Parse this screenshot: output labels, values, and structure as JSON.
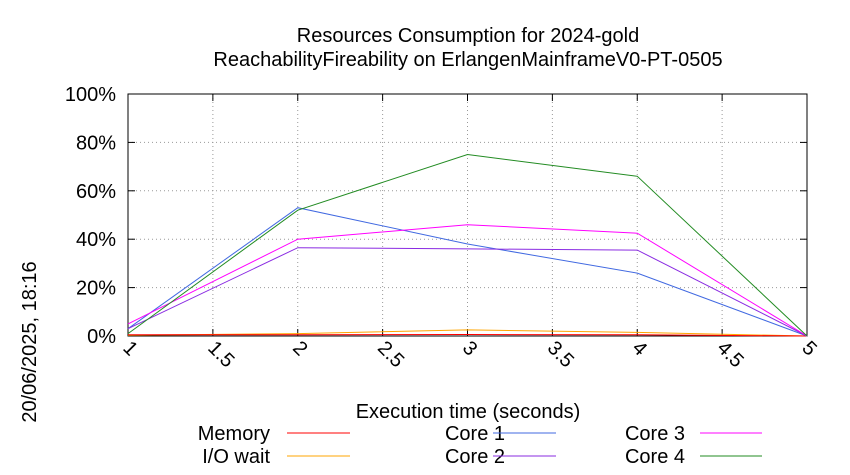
{
  "chart_data": {
    "type": "line",
    "title_line1": "Resources Consumption for 2024-gold",
    "title_line2": "ReachabilityFireability on ErlangenMainframeV0-PT-0505",
    "xlabel": "Execution time (seconds)",
    "ylabel": "",
    "timestamp": "20/06/2025, 18:16",
    "x_ticks": [
      "1",
      "1.5",
      "2",
      "2.5",
      "3",
      "3.5",
      "4",
      "4.5",
      "5"
    ],
    "y_ticks": [
      "0%",
      "20%",
      "40%",
      "60%",
      "80%",
      "100%"
    ],
    "xlim": [
      1,
      5
    ],
    "ylim": [
      0,
      100
    ],
    "grid": true,
    "legend_position": "bottom",
    "series": [
      {
        "name": "Memory",
        "color": "#ff0000",
        "x": [
          1,
          2,
          3,
          4,
          5
        ],
        "y": [
          0.5,
          0.5,
          0.6,
          0.5,
          0
        ]
      },
      {
        "name": "I/O wait",
        "color": "#ffa500",
        "x": [
          1,
          2,
          3,
          4,
          5
        ],
        "y": [
          0.3,
          1.0,
          2.5,
          1.5,
          0
        ]
      },
      {
        "name": "Core 1",
        "color": "#4169e1",
        "x": [
          1,
          2,
          3,
          4,
          5
        ],
        "y": [
          3,
          53,
          38,
          26,
          0
        ]
      },
      {
        "name": "Core 2",
        "color": "#8a2be2",
        "x": [
          1,
          2,
          3,
          4,
          5
        ],
        "y": [
          3,
          36.5,
          36,
          35.5,
          0
        ]
      },
      {
        "name": "Core 3",
        "color": "#ff00ff",
        "x": [
          1,
          2,
          3,
          4,
          5
        ],
        "y": [
          5,
          40,
          46,
          42.5,
          0
        ]
      },
      {
        "name": "Core 4",
        "color": "#228b22",
        "x": [
          1,
          2,
          3,
          4,
          5
        ],
        "y": [
          1,
          52,
          75,
          66,
          0
        ]
      }
    ]
  }
}
